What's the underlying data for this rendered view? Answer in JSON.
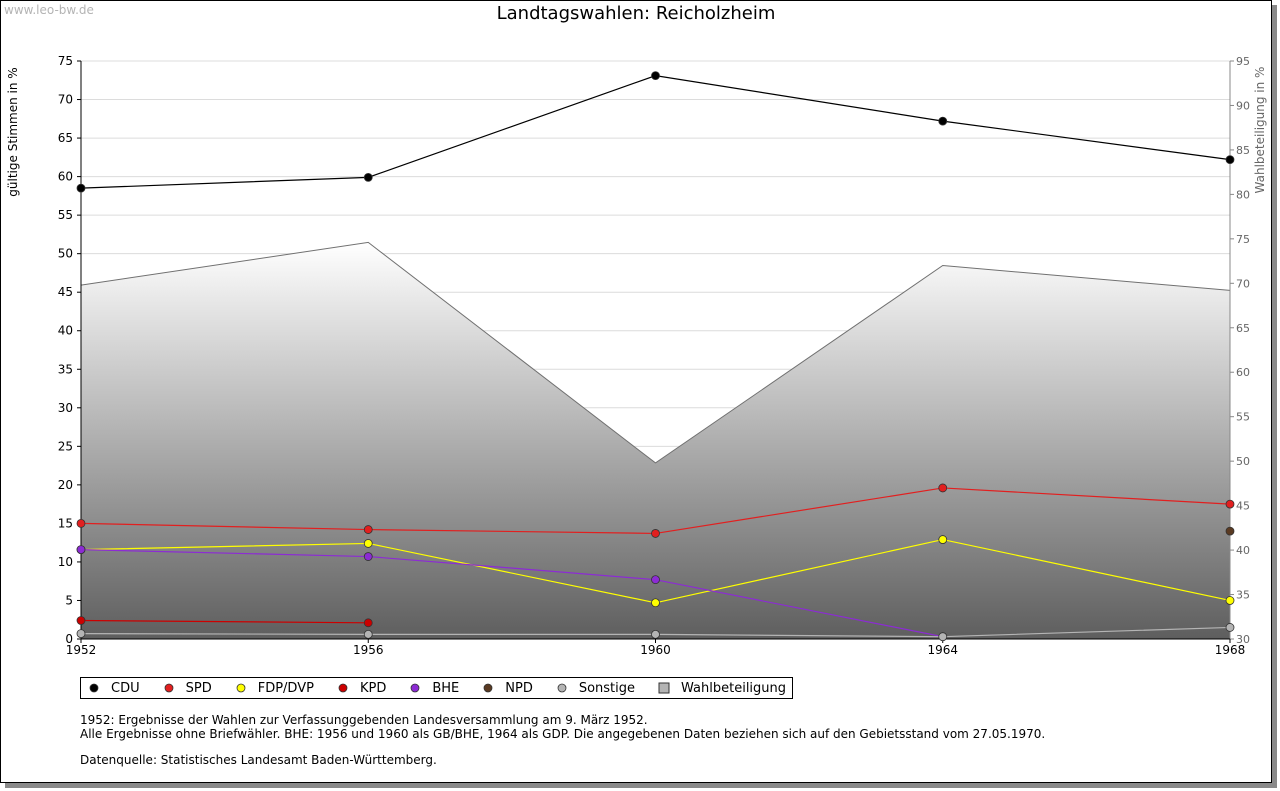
{
  "watermark": "www.leo-bw.de",
  "chart_data": {
    "type": "line",
    "title": "Landtagswahlen: Reicholzheim",
    "ylabel": "gültige Stimmen in %",
    "y2label": "Wahlbeteiligung in %",
    "x": [
      "1952",
      "1956",
      "1960",
      "1964",
      "1968"
    ],
    "ylim": [
      0,
      75
    ],
    "y2lim": [
      30,
      95
    ],
    "yticks": [
      "0",
      "5",
      "10",
      "15",
      "20",
      "25",
      "30",
      "35",
      "40",
      "45",
      "50",
      "55",
      "60",
      "65",
      "70",
      "75"
    ],
    "y2ticks": [
      "30",
      "35",
      "40",
      "45",
      "50",
      "55",
      "60",
      "65",
      "70",
      "75",
      "80",
      "85",
      "90",
      "95"
    ],
    "grid": true,
    "legend_position": "bottom-left",
    "series": [
      {
        "name": "CDU",
        "color": "#000000",
        "values": [
          58.5,
          59.9,
          73.1,
          67.2,
          62.2
        ]
      },
      {
        "name": "SPD",
        "color": "#e21f1f",
        "values": [
          15.0,
          14.2,
          13.7,
          19.6,
          17.5
        ]
      },
      {
        "name": "FDP/DVP",
        "color": "#ffff00",
        "values": [
          11.6,
          12.4,
          4.7,
          12.9,
          5.0
        ]
      },
      {
        "name": "KPD",
        "color": "#cc0000",
        "values": [
          2.4,
          2.1,
          null,
          null,
          null
        ]
      },
      {
        "name": "BHE",
        "color": "#8c2bd4",
        "values": [
          11.6,
          10.7,
          7.7,
          0.3,
          null
        ]
      },
      {
        "name": "NPD",
        "color": "#5a3a22",
        "values": [
          null,
          null,
          null,
          null,
          14.0
        ]
      },
      {
        "name": "Sonstige",
        "color": "#b4b4b4",
        "values": [
          0.7,
          0.6,
          0.6,
          0.3,
          1.5
        ]
      }
    ],
    "turnout": {
      "name": "Wahlbeteiligung",
      "axis": "right",
      "values": [
        69.8,
        74.6,
        49.8,
        72.0,
        69.2
      ]
    }
  },
  "notes": {
    "line1": "1952: Ergebnisse der Wahlen zur Verfassunggebenden Landesversammlung am 9. März 1952.",
    "line2": "Alle Ergebnisse ohne Briefwähler. BHE: 1956 und 1960 als GB/BHE, 1964 als GDP. Die angegebenen Daten beziehen sich auf den Gebietsstand vom 27.05.1970.",
    "source": "Datenquelle: Statistisches Landesamt Baden-Württemberg."
  }
}
